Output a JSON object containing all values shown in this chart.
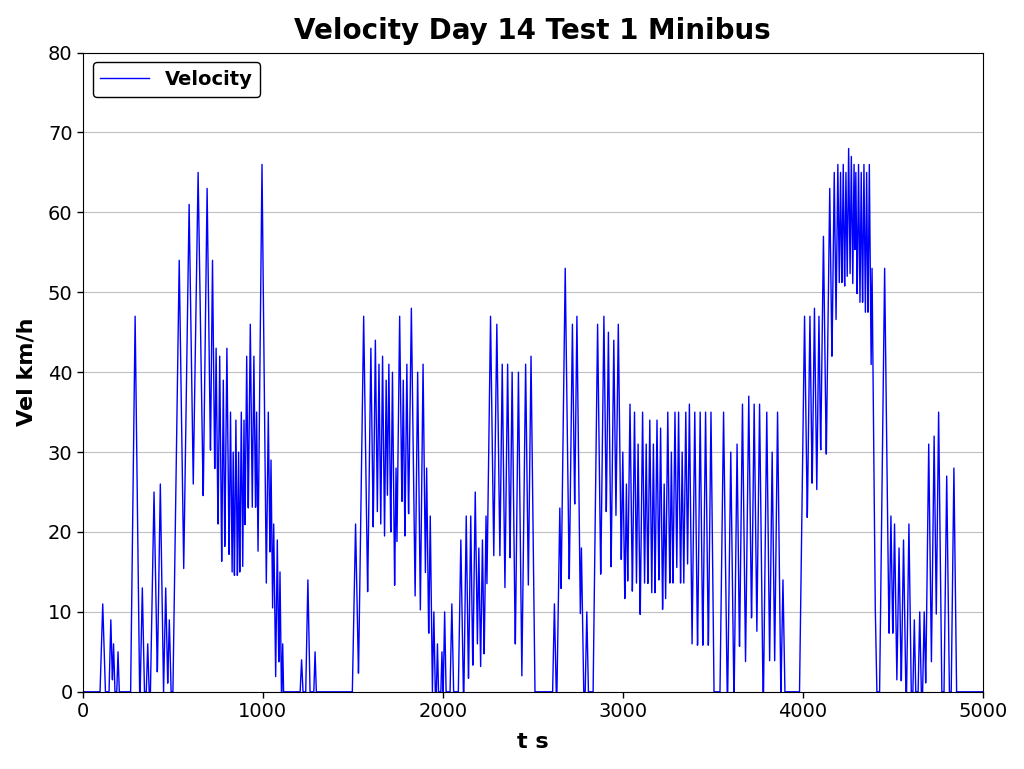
{
  "title": "Velocity Day 14 Test 1 Minibus",
  "xlabel": "t s",
  "ylabel": "Vel km/h",
  "xlim": [
    0,
    5000
  ],
  "ylim": [
    0,
    80
  ],
  "xticks": [
    0,
    1000,
    2000,
    3000,
    4000,
    5000
  ],
  "yticks": [
    0,
    10,
    20,
    30,
    40,
    50,
    60,
    70,
    80
  ],
  "line_color": "#0000FF",
  "line_width": 1.0,
  "legend_label": "Velocity",
  "title_fontsize": 20,
  "label_fontsize": 16,
  "tick_fontsize": 14,
  "legend_fontsize": 14,
  "background_color": "#FFFFFF",
  "grid_color": "#C0C0C0",
  "seed": 7
}
